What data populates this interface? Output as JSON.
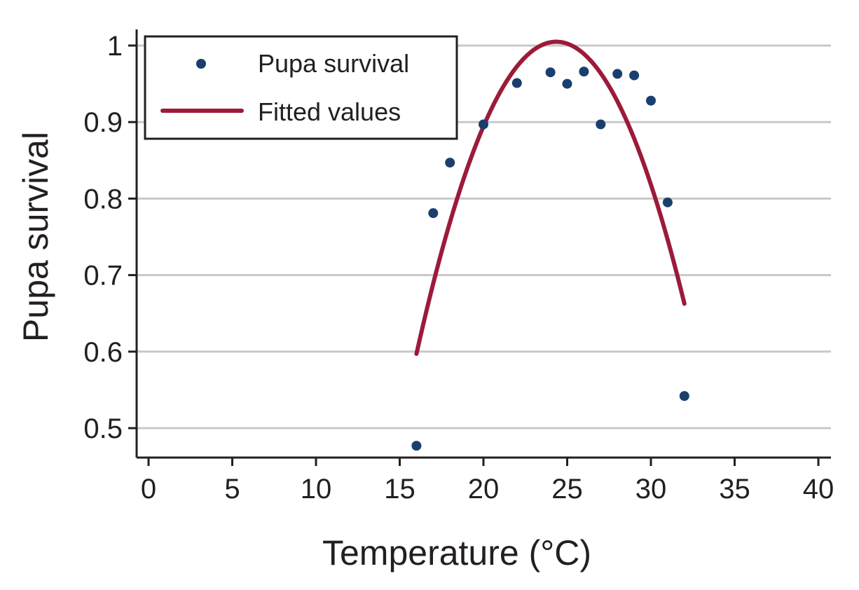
{
  "chart_data": {
    "type": "scatter",
    "title": "",
    "xlabel": "Temperature (°C)",
    "ylabel": "Pupa survival",
    "xlim": [
      0,
      40
    ],
    "ylim": [
      0.46,
      1.02
    ],
    "xticks": [
      0,
      5,
      10,
      15,
      20,
      25,
      30,
      35,
      40
    ],
    "xtick_labels": [
      "0",
      "5",
      "10",
      "15",
      "20",
      "25",
      "30",
      "35",
      "40"
    ],
    "yticks": [
      0.5,
      0.6,
      0.7,
      0.8,
      0.9,
      1.0
    ],
    "ytick_labels": [
      "0.5",
      "0.6",
      "0.7",
      "0.8",
      "0.9",
      "1"
    ],
    "grid": "horizontal",
    "legend_position": "top-left",
    "series": [
      {
        "name": "Pupa survival",
        "kind": "scatter",
        "color": "#1a3f6f",
        "x": [
          16,
          17,
          18,
          20,
          22,
          24,
          25,
          26,
          27,
          28,
          29,
          30,
          31,
          32
        ],
        "y": [
          0.477,
          0.781,
          0.847,
          0.897,
          0.951,
          0.965,
          0.95,
          0.966,
          0.897,
          0.963,
          0.961,
          0.928,
          0.795,
          0.542
        ]
      },
      {
        "name": "Fitted values",
        "kind": "line",
        "color": "#9b1b38",
        "quadratic": {
          "peak_x": 24.35,
          "peak_y": 1.005,
          "curvature": 0.00585
        },
        "x_range": [
          16,
          32
        ]
      }
    ]
  }
}
